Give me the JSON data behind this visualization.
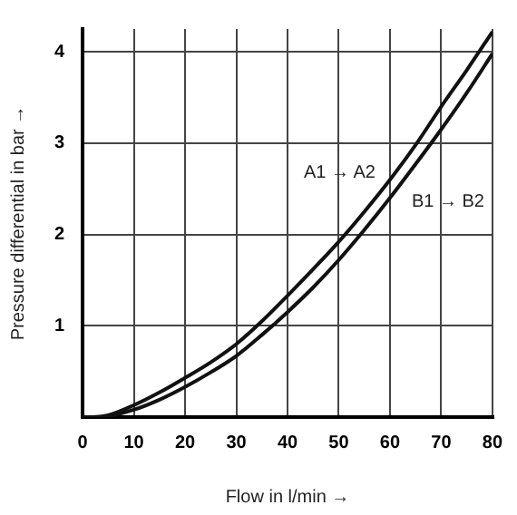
{
  "chart_data": {
    "type": "line",
    "xlabel": "Flow in l/min →",
    "ylabel": "Pressure differential in bar →",
    "series": [
      {
        "name": "A1 → A2",
        "color": "#111111",
        "x": [
          0,
          2,
          5,
          10,
          15,
          20,
          25,
          30,
          35,
          40,
          45,
          50,
          55,
          60,
          65,
          70,
          75,
          80
        ],
        "values": [
          0,
          0,
          0.02,
          0.13,
          0.27,
          0.43,
          0.6,
          0.8,
          1.05,
          1.33,
          1.62,
          1.92,
          2.25,
          2.6,
          2.98,
          3.4,
          3.8,
          4.22
        ]
      },
      {
        "name": "B1 → B2",
        "color": "#111111",
        "x": [
          0,
          2,
          5,
          10,
          15,
          20,
          25,
          30,
          35,
          40,
          45,
          50,
          55,
          60,
          65,
          70,
          75,
          80
        ],
        "values": [
          0,
          0,
          0.01,
          0.08,
          0.19,
          0.33,
          0.49,
          0.67,
          0.9,
          1.15,
          1.42,
          1.72,
          2.05,
          2.4,
          2.77,
          3.15,
          3.55,
          3.98
        ]
      }
    ],
    "xlim": [
      0,
      80
    ],
    "xticks": [
      0,
      10,
      20,
      30,
      40,
      50,
      60,
      70,
      80
    ],
    "ylim": [
      0,
      4.25
    ],
    "yticks": [
      {
        "value": 0,
        "label": null
      },
      1,
      2,
      3,
      4
    ],
    "grid": true,
    "legend": false,
    "marker": "none",
    "line_style": "solid"
  }
}
